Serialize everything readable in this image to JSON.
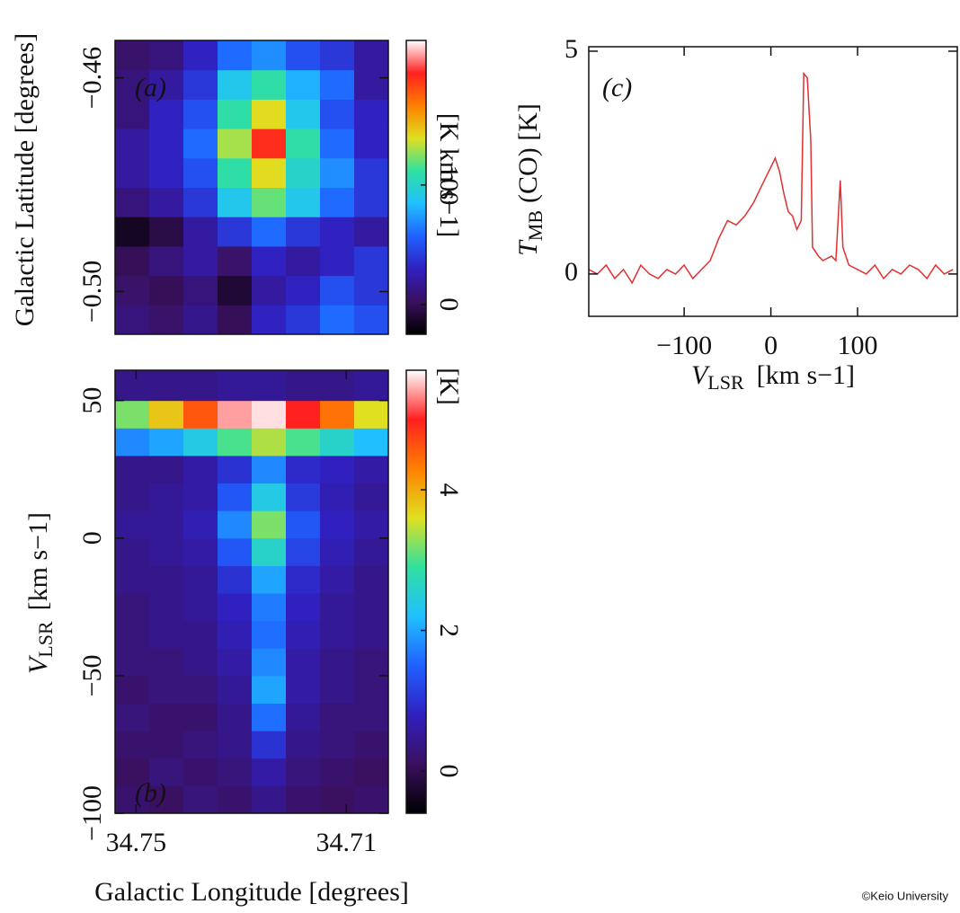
{
  "chart_data": [
    {
      "type": "heatmap",
      "panel_label": "(a)",
      "ylabel": "Galactic Latitude [degrees]",
      "colorbar_label": "[K km s−1]",
      "xedges": [
        34.754,
        34.7475,
        34.741,
        34.7345,
        34.728,
        34.7215,
        34.715,
        34.7085,
        34.702
      ],
      "yedges": [
        -0.508,
        -0.5025,
        -0.497,
        -0.4915,
        -0.486,
        -0.4805,
        -0.475,
        -0.4695,
        -0.464,
        -0.4585,
        -0.453
      ],
      "values": [
        [
          10,
          5,
          15,
          0,
          30,
          40,
          60,
          50
        ],
        [
          5,
          0,
          10,
          -10,
          20,
          30,
          50,
          40
        ],
        [
          0,
          10,
          20,
          5,
          30,
          20,
          30,
          40
        ],
        [
          -15,
          -5,
          20,
          40,
          60,
          40,
          30,
          20
        ],
        [
          10,
          20,
          40,
          90,
          120,
          90,
          60,
          40
        ],
        [
          20,
          30,
          50,
          110,
          140,
          100,
          70,
          40
        ],
        [
          20,
          30,
          60,
          130,
          190,
          110,
          60,
          30
        ],
        [
          10,
          30,
          50,
          110,
          140,
          90,
          50,
          30
        ],
        [
          10,
          20,
          40,
          90,
          110,
          80,
          60,
          20
        ],
        [
          5,
          10,
          30,
          60,
          70,
          50,
          40,
          20
        ]
      ],
      "xlim": [
        34.754,
        34.702
      ],
      "ylim": [
        -0.508,
        -0.453
      ],
      "yticks": [
        {
          "value": -0.46,
          "label": "−0.46"
        },
        {
          "value": -0.5,
          "label": "−0.50"
        }
      ],
      "clim": [
        -25,
        221
      ],
      "cticks": [
        0,
        100
      ],
      "colormap": [
        "#000000",
        "#3a1060",
        "#3020c0",
        "#2060ff",
        "#20c0ff",
        "#30e0a0",
        "#e0e020",
        "#ff8000",
        "#ff2020",
        "#ffffff"
      ]
    },
    {
      "type": "heatmap",
      "panel_label": "(b)",
      "ylabel_var": "V",
      "ylabel_sub": "LSR",
      "ylabel_unit": "[km s−1]",
      "xlabel": "Galactic Longitude [degrees]",
      "colorbar_label": "[K]",
      "xedges": [
        34.754,
        34.7475,
        34.741,
        34.7345,
        34.728,
        34.7215,
        34.715,
        34.7085,
        34.702
      ],
      "yedges": [
        -100,
        -90,
        -80,
        -70,
        -60,
        -50,
        -40,
        -30,
        -20,
        -10,
        0,
        10,
        20,
        30,
        40,
        50,
        61
      ],
      "values": [
        [
          0.2,
          0.1,
          0.3,
          0.2,
          0.4,
          0.2,
          0.1,
          0.2
        ],
        [
          0.1,
          0.3,
          0.2,
          0.3,
          0.6,
          0.3,
          0.2,
          0.1
        ],
        [
          0.2,
          0.2,
          0.3,
          0.4,
          1.0,
          0.4,
          0.3,
          0.2
        ],
        [
          0.3,
          0.2,
          0.2,
          0.4,
          1.6,
          0.5,
          0.3,
          0.3
        ],
        [
          0.2,
          0.3,
          0.3,
          0.5,
          2.0,
          0.6,
          0.4,
          0.3
        ],
        [
          0.3,
          0.3,
          0.4,
          0.6,
          1.8,
          0.6,
          0.4,
          0.3
        ],
        [
          0.3,
          0.4,
          0.4,
          0.7,
          1.6,
          0.7,
          0.5,
          0.4
        ],
        [
          0.3,
          0.4,
          0.5,
          0.8,
          1.7,
          0.8,
          0.5,
          0.4
        ],
        [
          0.4,
          0.4,
          0.5,
          1.0,
          2.0,
          0.9,
          0.6,
          0.4
        ],
        [
          0.4,
          0.5,
          0.6,
          1.4,
          2.6,
          1.2,
          0.7,
          0.5
        ],
        [
          0.5,
          0.5,
          0.7,
          1.8,
          3.2,
          1.4,
          0.8,
          0.6
        ],
        [
          0.4,
          0.5,
          0.6,
          1.4,
          2.4,
          1.1,
          0.7,
          0.5
        ],
        [
          0.4,
          0.4,
          0.6,
          1.0,
          1.8,
          0.9,
          0.8,
          0.6
        ],
        [
          1.8,
          2.0,
          2.4,
          3.0,
          3.4,
          3.0,
          2.6,
          2.2
        ],
        [
          3.2,
          3.8,
          4.6,
          5.4,
          5.6,
          5.0,
          4.4,
          3.6
        ],
        [
          0.4,
          0.4,
          0.4,
          0.5,
          0.5,
          0.4,
          0.4,
          0.5
        ]
      ],
      "xlim": [
        34.754,
        34.702
      ],
      "ylim": [
        -100,
        61
      ],
      "xticks": [
        34.75,
        34.71
      ],
      "yticks": [
        50,
        0,
        {
          "value": -50,
          "label": "−50"
        },
        {
          "value": -100,
          "label": "−100"
        }
      ],
      "clim": [
        -0.6,
        5.7
      ],
      "cticks": [
        0,
        2,
        4
      ],
      "colormap": [
        "#000000",
        "#3a1060",
        "#3020c0",
        "#2060ff",
        "#20c0ff",
        "#30e0a0",
        "#e0e020",
        "#ff8000",
        "#ff2020",
        "#ffffff"
      ]
    },
    {
      "type": "line",
      "panel_label": "(c)",
      "color": "#e03030",
      "ylabel_var": "T",
      "ylabel_sub": "MB",
      "ylabel_unit": "(CO) [K]",
      "xlabel_var": "V",
      "xlabel_sub": "LSR",
      "xlabel_unit": "[km s−1]",
      "x": [
        -210,
        -200,
        -190,
        -180,
        -170,
        -160,
        -150,
        -140,
        -130,
        -120,
        -110,
        -100,
        -90,
        -80,
        -70,
        -60,
        -50,
        -40,
        -30,
        -20,
        -10,
        0,
        5,
        10,
        15,
        20,
        25,
        30,
        35,
        38,
        42,
        46,
        48,
        55,
        60,
        70,
        75,
        80,
        83,
        90,
        100,
        110,
        120,
        130,
        140,
        150,
        160,
        170,
        180,
        190,
        200,
        210
      ],
      "values": [
        0.1,
        0.0,
        0.2,
        -0.1,
        0.1,
        -0.2,
        0.2,
        0.0,
        -0.1,
        0.1,
        0.0,
        0.2,
        -0.1,
        0.1,
        0.3,
        0.8,
        1.2,
        1.1,
        1.3,
        1.6,
        2.0,
        2.4,
        2.6,
        2.3,
        1.8,
        1.4,
        1.3,
        1.0,
        1.2,
        4.5,
        4.4,
        3.0,
        0.6,
        0.4,
        0.3,
        0.4,
        0.3,
        2.1,
        0.6,
        0.2,
        0.1,
        0.0,
        0.2,
        -0.1,
        0.1,
        0.0,
        0.2,
        0.1,
        -0.1,
        0.2,
        0.0,
        0.1
      ],
      "xlim": [
        -210,
        215
      ],
      "ylim": [
        -0.95,
        5.1
      ],
      "xticks": [
        {
          "value": -100,
          "label": "−100"
        },
        0,
        100
      ],
      "yticks": [
        0,
        5
      ]
    }
  ],
  "credit": "©Keio University"
}
